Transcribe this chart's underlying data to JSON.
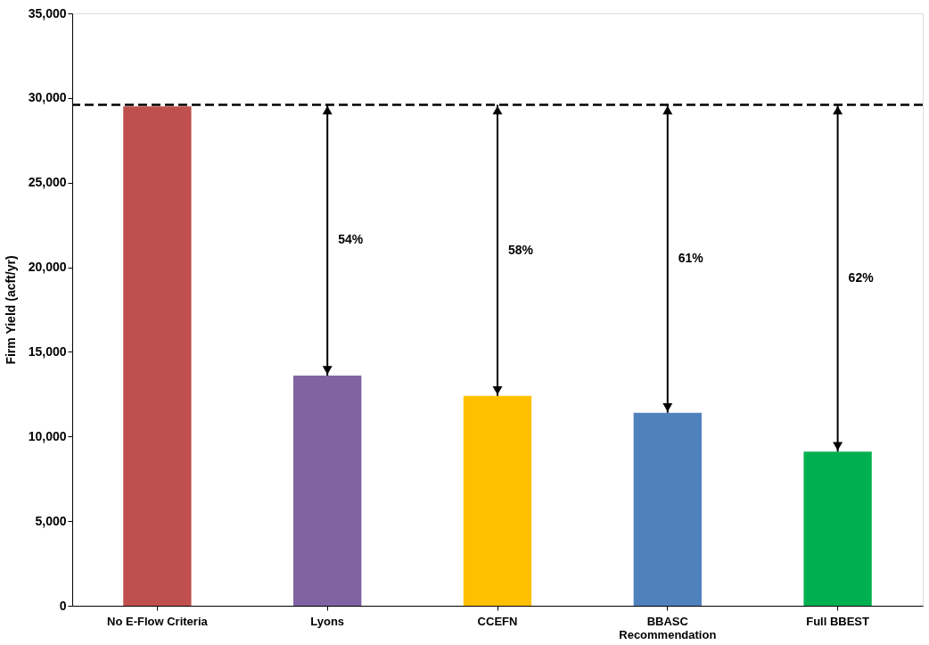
{
  "chart_data": {
    "type": "bar",
    "ylabel": "Firm Yield (acft/yr)",
    "categories": [
      "No E-Flow Criteria",
      "Lyons",
      "CCEFN",
      "BBASC Recommendation",
      "Full BBEST"
    ],
    "values": [
      29500,
      13600,
      12400,
      11400,
      9100
    ],
    "colors": [
      "#c0504d",
      "#8064a2",
      "#ffc000",
      "#4f81bd",
      "#00b050"
    ],
    "ylim": [
      0,
      35000
    ],
    "yticks": [
      {
        "value": 0,
        "label": "0"
      },
      {
        "value": 5000,
        "label": "5,000"
      },
      {
        "value": 10000,
        "label": "10,000"
      },
      {
        "value": 15000,
        "label": "15,000"
      },
      {
        "value": 20000,
        "label": "20,000"
      },
      {
        "value": 25000,
        "label": "25,000"
      },
      {
        "value": 30000,
        "label": "30,000"
      },
      {
        "value": 35000,
        "label": "35,000"
      }
    ],
    "ref_lines": [
      {
        "axis": "y",
        "value": 29600,
        "color": "#000000",
        "line_style": "dashed"
      }
    ],
    "annotations": [
      "54%",
      "58%",
      "61%",
      "62%"
    ],
    "grid": false
  }
}
